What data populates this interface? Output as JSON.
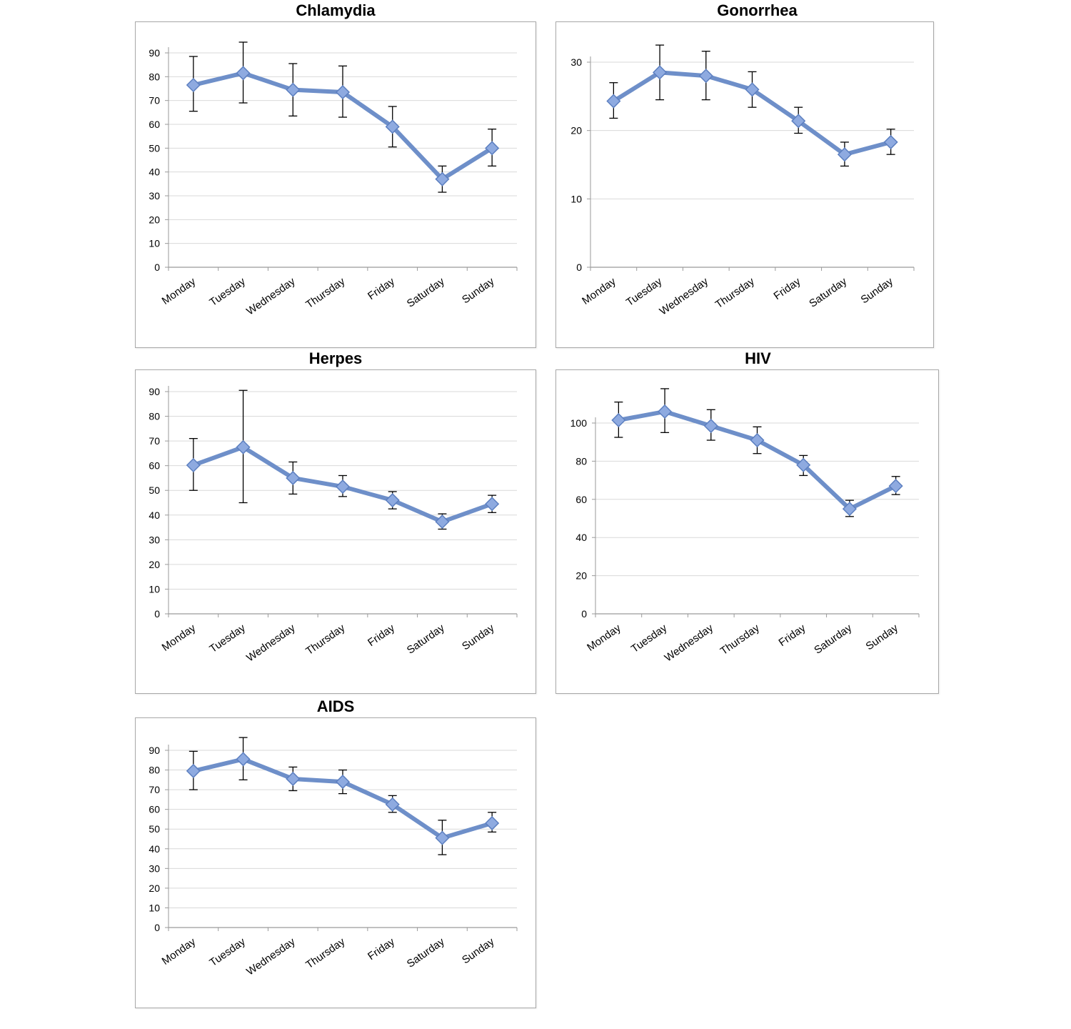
{
  "colors": {
    "series": "#6e8fc9",
    "marker": "#8eaae0",
    "grid": "#d9d9d9",
    "axis": "#9a9a9a",
    "error": "#000000"
  },
  "chart_data": [
    {
      "type": "line",
      "title": "Chlamydia",
      "categories": [
        "Monday",
        "Tuesday",
        "Wednesday",
        "Thursday",
        "Friday",
        "Saturday",
        "Sunday"
      ],
      "values": [
        76.5,
        81.5,
        74.5,
        73.5,
        59,
        37,
        50
      ],
      "error_low": [
        65.5,
        69,
        63.5,
        63,
        50.5,
        31.5,
        42.5
      ],
      "error_high": [
        88.5,
        94.5,
        85.5,
        84.5,
        67.5,
        42.5,
        58
      ],
      "ylim": [
        0,
        90
      ],
      "yticks": [
        0,
        10,
        20,
        30,
        40,
        50,
        60,
        70,
        80,
        90
      ],
      "grid": true
    },
    {
      "type": "line",
      "title": "Gonorrhea",
      "categories": [
        "Monday",
        "Tuesday",
        "Wednesday",
        "Thursday",
        "Friday",
        "Saturday",
        "Sunday"
      ],
      "values": [
        24.3,
        28.5,
        28,
        26,
        21.4,
        16.5,
        18.3
      ],
      "error_low": [
        21.8,
        24.5,
        24.5,
        23.4,
        19.6,
        14.8,
        16.5
      ],
      "error_high": [
        27,
        32.5,
        31.6,
        28.6,
        23.4,
        18.3,
        20.2
      ],
      "ylim": [
        0,
        30
      ],
      "yticks": [
        0,
        10,
        20,
        30
      ],
      "grid": true
    },
    {
      "type": "line",
      "title": "Herpes",
      "categories": [
        "Monday",
        "Tuesday",
        "Wednesday",
        "Thursday",
        "Friday",
        "Saturday",
        "Sunday"
      ],
      "values": [
        60.2,
        67.5,
        55,
        51.5,
        46,
        37.3,
        44.5
      ],
      "error_low": [
        50,
        45,
        48.5,
        47.5,
        42.5,
        34.3,
        41
      ],
      "error_high": [
        71,
        90.5,
        61.5,
        56,
        49.5,
        40.5,
        48
      ],
      "ylim": [
        0,
        90
      ],
      "yticks": [
        0,
        10,
        20,
        30,
        40,
        50,
        60,
        70,
        80,
        90
      ],
      "grid": true
    },
    {
      "type": "line",
      "title": "HIV",
      "categories": [
        "Monday",
        "Tuesday",
        "Wednesday",
        "Thursday",
        "Friday",
        "Saturday",
        "Sunday"
      ],
      "values": [
        101.5,
        106,
        98.5,
        91,
        78,
        55,
        67
      ],
      "error_low": [
        92.5,
        95,
        91,
        84,
        72.5,
        51,
        62.5
      ],
      "error_high": [
        111,
        118,
        107,
        98,
        83,
        59.5,
        72
      ],
      "ylim": [
        0,
        100
      ],
      "yticks": [
        0,
        20,
        40,
        60,
        80,
        100
      ],
      "grid": true
    },
    {
      "type": "line",
      "title": "AIDS",
      "categories": [
        "Monday",
        "Tuesday",
        "Wednesday",
        "Thursday",
        "Friday",
        "Saturday",
        "Sunday"
      ],
      "values": [
        79.5,
        85.5,
        75.5,
        74,
        62.5,
        45.5,
        53
      ],
      "error_low": [
        70,
        75,
        69.5,
        68,
        58.5,
        37,
        48.5
      ],
      "error_high": [
        89.5,
        96.5,
        81.5,
        80,
        67,
        54.5,
        58.5
      ],
      "ylim": [
        0,
        90
      ],
      "yticks": [
        0,
        10,
        20,
        30,
        40,
        50,
        60,
        70,
        80,
        90
      ],
      "grid": true
    }
  ]
}
